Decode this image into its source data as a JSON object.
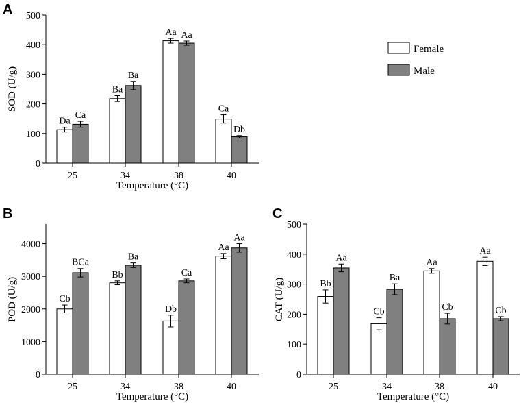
{
  "colors": {
    "female": "#ffffff",
    "male": "#808080",
    "stroke": "#000000"
  },
  "legend": {
    "female": "Female",
    "male": "Male"
  },
  "chart_data": [
    {
      "panel": "A",
      "type": "bar",
      "ylabel": "SOD (U/g)",
      "xlabel": "Temperature (°C)",
      "ylim": [
        0,
        500
      ],
      "yticks": [
        "0",
        "100",
        "200",
        "300",
        "400",
        "500"
      ],
      "categories": [
        "25",
        "34",
        "38",
        "40"
      ],
      "series": [
        {
          "name": "Female",
          "values": [
            113,
            218,
            413,
            149
          ],
          "errors": [
            8,
            10,
            8,
            14
          ],
          "labels": [
            "Da",
            "Ba",
            "Aa",
            "Ca"
          ]
        },
        {
          "name": "Male",
          "values": [
            131,
            262,
            405,
            89
          ],
          "errors": [
            10,
            14,
            7,
            4
          ],
          "labels": [
            "Ca",
            "Ba",
            "Aa",
            "Db"
          ]
        }
      ],
      "legend_position": "top-right"
    },
    {
      "panel": "B",
      "type": "bar",
      "ylabel": "POD (U/g)",
      "xlabel": "Temperature (°C)",
      "ylim": [
        0,
        4600
      ],
      "yticks": [
        "0",
        "1000",
        "2000",
        "3000",
        "4000"
      ],
      "categories": [
        "25",
        "34",
        "38",
        "40"
      ],
      "series": [
        {
          "name": "Female",
          "values": [
            2000,
            2800,
            1630,
            3620
          ],
          "errors": [
            120,
            60,
            180,
            80
          ],
          "labels": [
            "Cb",
            "Bb",
            "Db",
            "Aa"
          ]
        },
        {
          "name": "Male",
          "values": [
            3110,
            3340,
            2860,
            3870
          ],
          "errors": [
            130,
            70,
            60,
            130
          ],
          "labels": [
            "BCa",
            "Ba",
            "Ca",
            "Aa"
          ]
        }
      ]
    },
    {
      "panel": "C",
      "type": "bar",
      "ylabel": "CAT (U/g)",
      "xlabel": "Temperature (°C)",
      "ylim": [
        0,
        500
      ],
      "yticks": [
        "0",
        "100",
        "200",
        "300",
        "400",
        "500"
      ],
      "categories": [
        "25",
        "34",
        "38",
        "40"
      ],
      "series": [
        {
          "name": "Female",
          "values": [
            259,
            168,
            344,
            376
          ],
          "errors": [
            22,
            20,
            8,
            14
          ],
          "labels": [
            "Bb",
            "Cb",
            "Aa",
            "Aa"
          ]
        },
        {
          "name": "Male",
          "values": [
            354,
            283,
            185,
            185
          ],
          "errors": [
            13,
            18,
            18,
            7
          ],
          "labels": [
            "Aa",
            "Ba",
            "Cb",
            "Cb"
          ]
        }
      ]
    }
  ]
}
